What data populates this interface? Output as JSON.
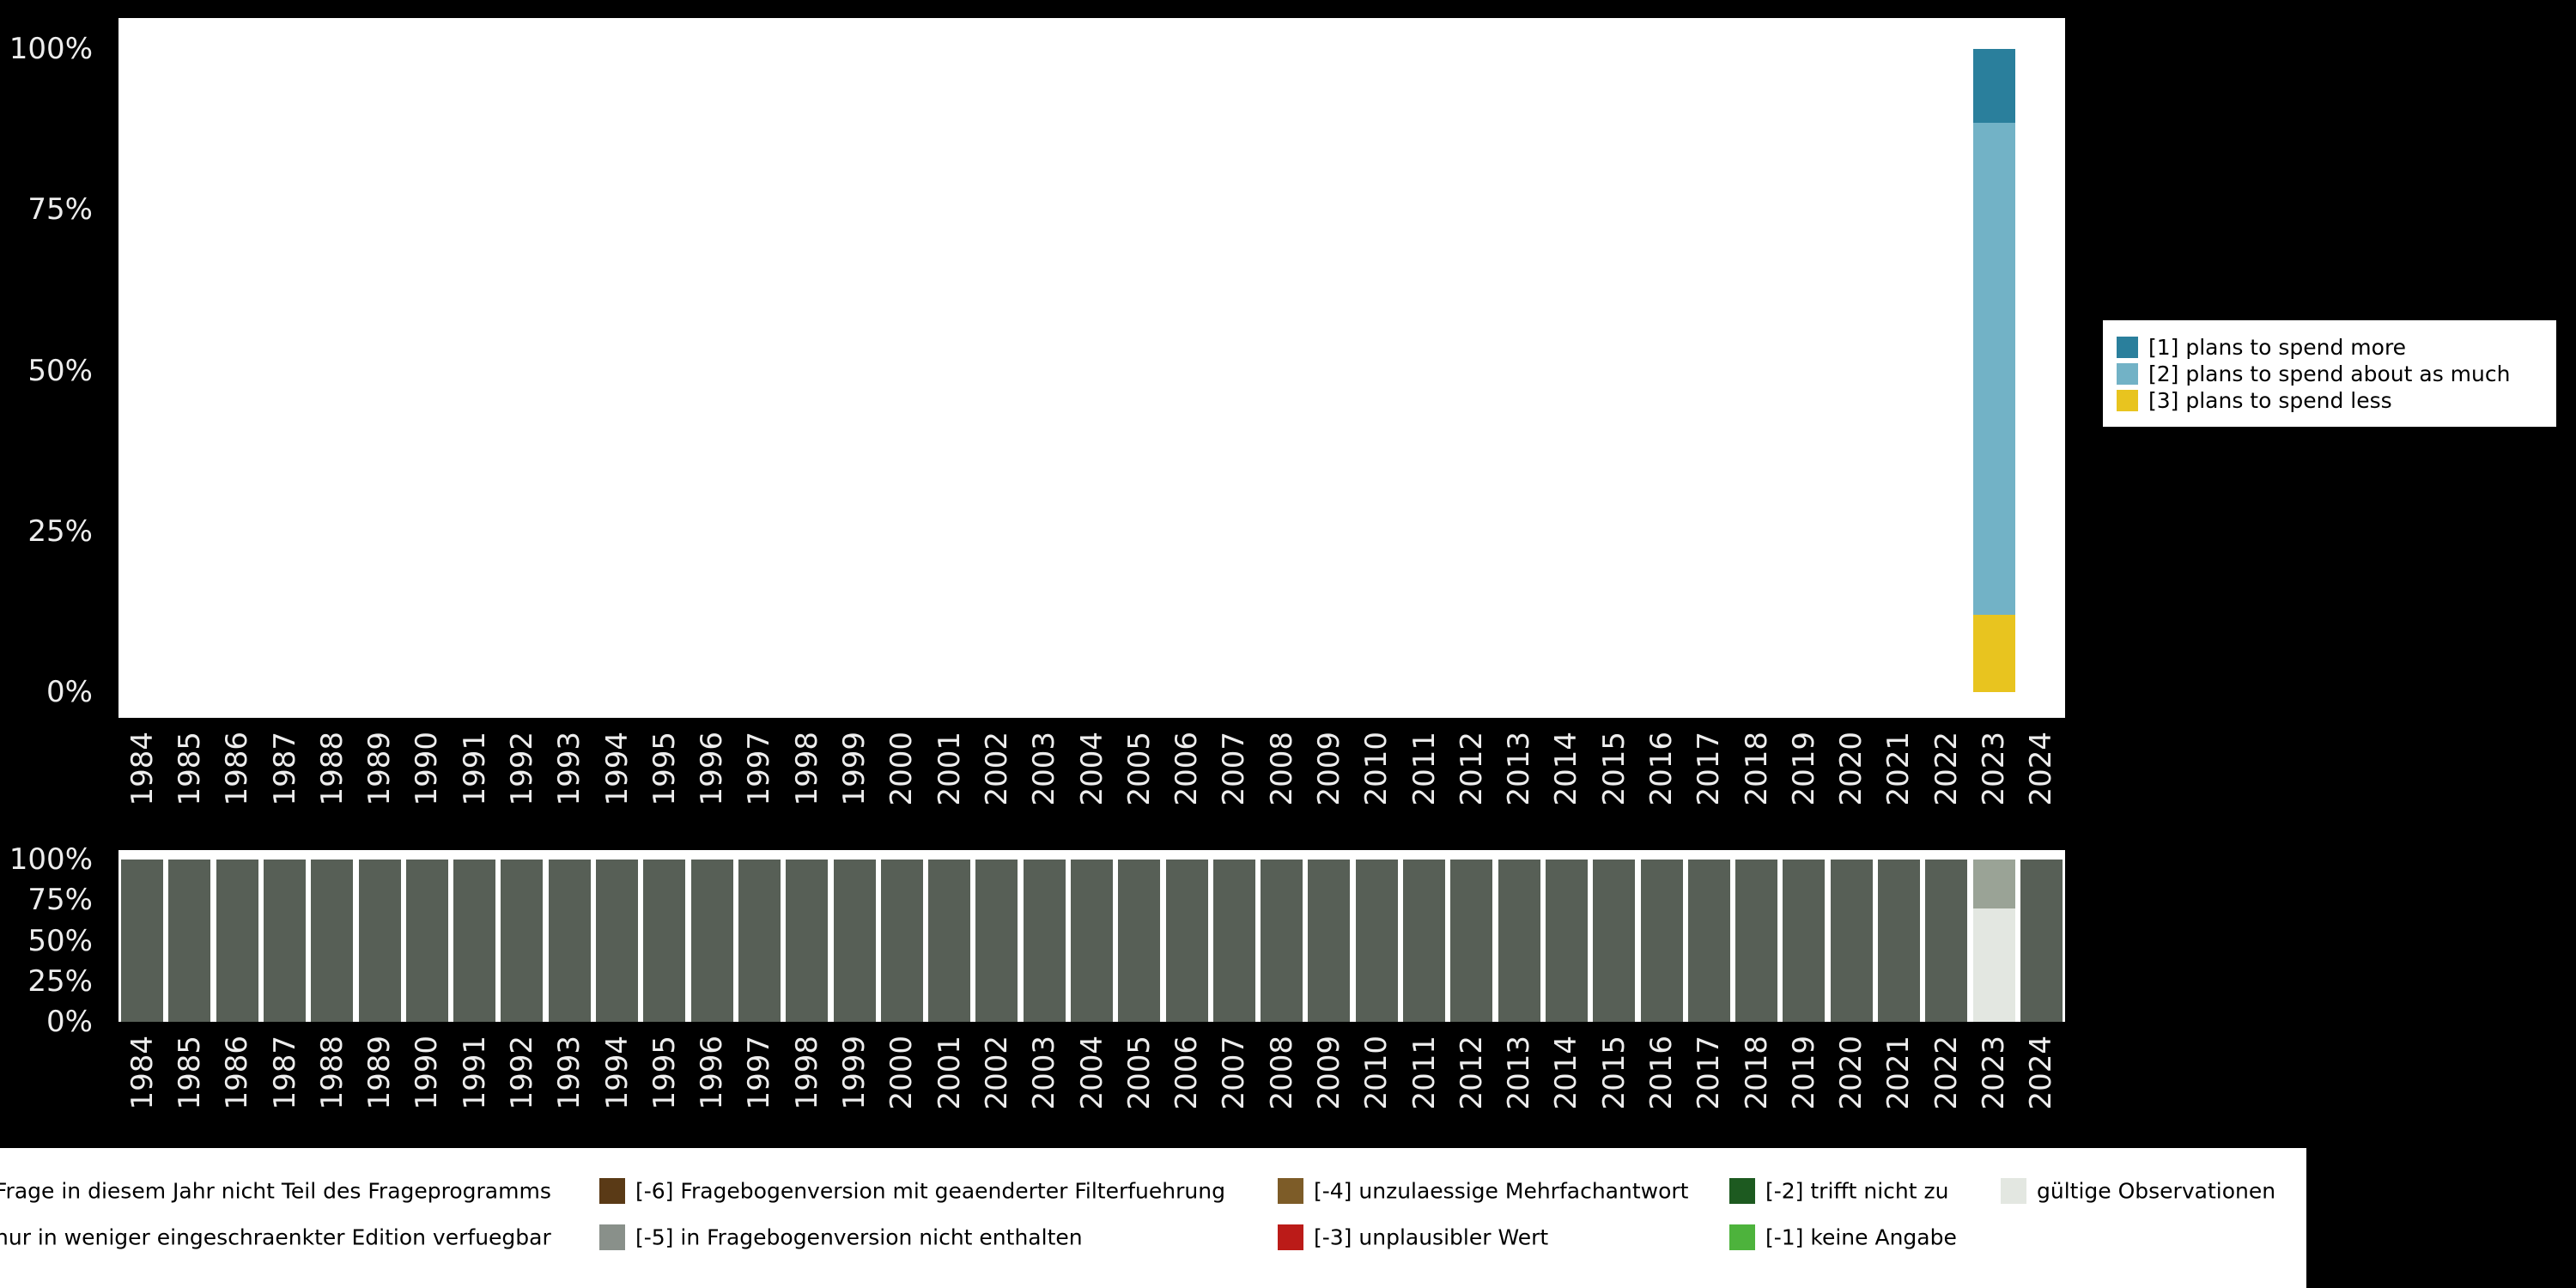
{
  "figure": {
    "background": "#000000",
    "plot_background": "#ffffff",
    "tick_color": "#ededed"
  },
  "axes": {
    "percent_ticks_top_to_bottom": [
      "100%",
      "75%",
      "50%",
      "25%",
      "0%"
    ],
    "years": [
      "1984",
      "1985",
      "1986",
      "1987",
      "1988",
      "1989",
      "1990",
      "1991",
      "1992",
      "1993",
      "1994",
      "1995",
      "1996",
      "1997",
      "1998",
      "1999",
      "2000",
      "2001",
      "2002",
      "2003",
      "2004",
      "2005",
      "2006",
      "2007",
      "2008",
      "2009",
      "2010",
      "2011",
      "2012",
      "2013",
      "2014",
      "2015",
      "2016",
      "2017",
      "2018",
      "2019",
      "2020",
      "2021",
      "2022",
      "2023",
      "2024"
    ]
  },
  "top_legend": {
    "items": [
      {
        "label": "[1] plans to spend more",
        "color": "#2a7f9c"
      },
      {
        "label": "[2] plans to spend about as much",
        "color": "#72b2c6"
      },
      {
        "label": "[3] plans to spend less",
        "color": "#e8c41f"
      }
    ]
  },
  "bottom_legend": {
    "rows": [
      [
        {
          "label": "Frage in diesem Jahr nicht Teil des Frageprogramms",
          "color": "#575f56",
          "swatch_cropped": true
        },
        {
          "label": "[-6] Fragebogenversion mit geaenderter Filterfuehrung",
          "color": "#5a3a16"
        },
        {
          "label": "[-4] unzulaessige Mehrfachantwort",
          "color": "#7d5c28"
        },
        {
          "label": "[-2] trifft nicht zu",
          "color": "#1d5a20"
        },
        {
          "label": "gültige Observationen",
          "color": "#e3e7e1"
        }
      ],
      [
        {
          "label": "nur in weniger eingeschraenkter Edition verfuegbar",
          "color": "#9aa396",
          "swatch_cropped": true
        },
        {
          "label": "[-5] in Fragebogenversion nicht enthalten",
          "color": "#89908a"
        },
        {
          "label": "[-3] unplausibler Wert",
          "color": "#bb1b18"
        },
        {
          "label": "[-1] keine Angabe",
          "color": "#4db33c"
        }
      ]
    ]
  },
  "chart_data": [
    {
      "type": "bar",
      "stacked": true,
      "title": "",
      "xlabel": "",
      "ylabel": "",
      "ylim": [
        0,
        100
      ],
      "ytick_labels": [
        "0%",
        "25%",
        "50%",
        "75%",
        "100%"
      ],
      "legend_position": "right",
      "legend": [
        "[1] plans to spend more",
        "[2] plans to spend about as much",
        "[3] plans to spend less"
      ],
      "categories": [
        "1984",
        "1985",
        "1986",
        "1987",
        "1988",
        "1989",
        "1990",
        "1991",
        "1992",
        "1993",
        "1994",
        "1995",
        "1996",
        "1997",
        "1998",
        "1999",
        "2000",
        "2001",
        "2002",
        "2003",
        "2004",
        "2005",
        "2006",
        "2007",
        "2008",
        "2009",
        "2010",
        "2011",
        "2012",
        "2013",
        "2014",
        "2015",
        "2016",
        "2017",
        "2018",
        "2019",
        "2020",
        "2021",
        "2022",
        "2023",
        "2024"
      ],
      "note": "Only the year 2023 has a bar; all other years are empty.",
      "bars_bottom_to_top_by_year": {
        "2023": [
          {
            "name": "[3] plans to spend less",
            "value": 12,
            "color": "#e8c41f"
          },
          {
            "name": "[2] plans to spend about as much",
            "value": 76.5,
            "color": "#72b2c6"
          },
          {
            "name": "[1] plans to spend more",
            "value": 11.5,
            "color": "#2a7f9c"
          }
        ]
      }
    },
    {
      "type": "bar",
      "stacked": true,
      "title": "",
      "xlabel": "",
      "ylabel": "",
      "ylim": [
        0,
        100
      ],
      "ytick_labels": [
        "0%",
        "25%",
        "50%",
        "75%",
        "100%"
      ],
      "categories": [
        "1984",
        "1985",
        "1986",
        "1987",
        "1988",
        "1989",
        "1990",
        "1991",
        "1992",
        "1993",
        "1994",
        "1995",
        "1996",
        "1997",
        "1998",
        "1999",
        "2000",
        "2001",
        "2002",
        "2003",
        "2004",
        "2005",
        "2006",
        "2007",
        "2008",
        "2009",
        "2010",
        "2011",
        "2012",
        "2013",
        "2014",
        "2015",
        "2016",
        "2017",
        "2018",
        "2019",
        "2020",
        "2021",
        "2022",
        "2023",
        "2024"
      ],
      "default_bar": [
        {
          "name": "Frage in diesem Jahr nicht Teil des Frageprogramms",
          "value": 100,
          "color": "#575f56"
        }
      ],
      "bars_bottom_to_top_by_year": {
        "2023": [
          {
            "name": "gültige Observationen",
            "value": 70,
            "color": "#e3e7e1"
          },
          {
            "name": "nur in weniger eingeschraenkter Edition verfuegbar",
            "value": 30,
            "color": "#9aa396"
          }
        ]
      }
    }
  ]
}
